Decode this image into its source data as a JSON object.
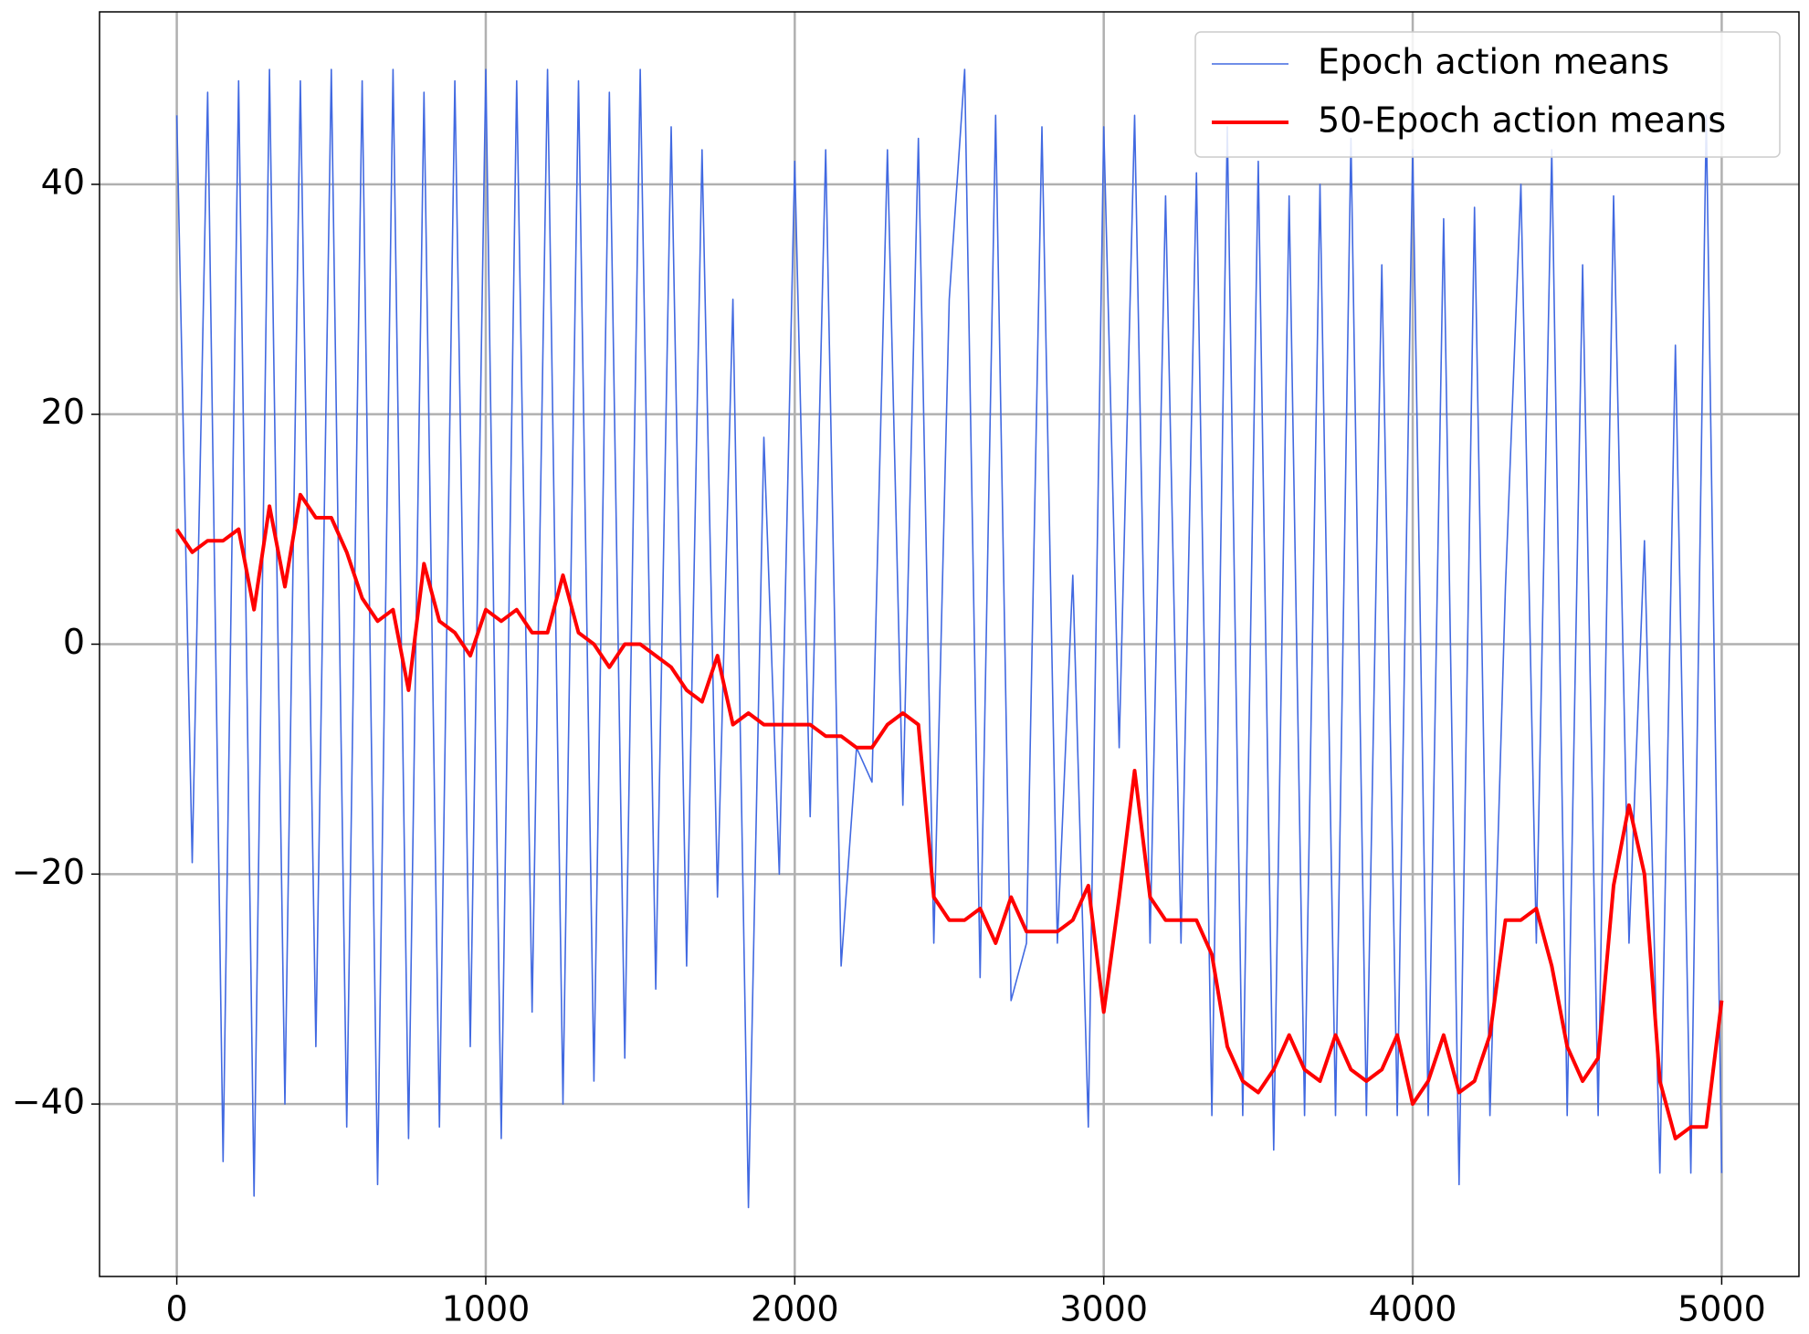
{
  "chart_data": {
    "type": "line",
    "x": [
      0,
      50,
      100,
      150,
      200,
      250,
      300,
      350,
      400,
      450,
      500,
      550,
      600,
      650,
      700,
      750,
      800,
      850,
      900,
      950,
      1000,
      1050,
      1100,
      1150,
      1200,
      1250,
      1300,
      1350,
      1400,
      1450,
      1500,
      1550,
      1600,
      1650,
      1700,
      1750,
      1800,
      1850,
      1900,
      1950,
      2000,
      2050,
      2100,
      2150,
      2200,
      2250,
      2300,
      2350,
      2400,
      2450,
      2500,
      2550,
      2600,
      2650,
      2700,
      2750,
      2800,
      2850,
      2900,
      2950,
      3000,
      3050,
      3100,
      3150,
      3200,
      3250,
      3300,
      3350,
      3400,
      3450,
      3500,
      3550,
      3600,
      3650,
      3700,
      3750,
      3800,
      3850,
      3900,
      3950,
      4000,
      4050,
      4100,
      4150,
      4200,
      4250,
      4300,
      4350,
      4400,
      4450,
      4500,
      4550,
      4600,
      4650,
      4700,
      4750,
      4800,
      4850,
      4900,
      4950,
      5000
    ],
    "series": [
      {
        "name": "Epoch action means",
        "color": "#4169e1",
        "width": 1.6,
        "values": [
          46,
          -19,
          48,
          -45,
          49,
          -48,
          50,
          -40,
          49,
          -35,
          50,
          -42,
          49,
          -47,
          50,
          -43,
          48,
          -42,
          49,
          -35,
          50,
          -43,
          49,
          -32,
          50,
          -40,
          49,
          -38,
          48,
          -36,
          50,
          -30,
          45,
          -28,
          43,
          -22,
          30,
          -49,
          18,
          -20,
          42,
          -15,
          43,
          -28,
          -9,
          -12,
          43,
          -14,
          44,
          -26,
          30,
          50,
          -29,
          46,
          -31,
          -26,
          45,
          -26,
          6,
          -42,
          45,
          -9,
          46,
          -26,
          39,
          -26,
          41,
          -41,
          45,
          -41,
          42,
          -44,
          39,
          -41,
          40,
          -41,
          44,
          -41,
          33,
          -41,
          43,
          -41,
          37,
          -47,
          38,
          -41,
          5,
          40,
          -26,
          43,
          -41,
          33,
          -41,
          39,
          -26,
          9,
          -46,
          26,
          -46,
          46,
          -46
        ]
      },
      {
        "name": "50-Epoch action means",
        "color": "#ff0000",
        "width": 4,
        "values": [
          10,
          8,
          9,
          9,
          10,
          3,
          12,
          5,
          13,
          11,
          11,
          8,
          4,
          2,
          3,
          -4,
          7,
          2,
          1,
          -1,
          3,
          2,
          3,
          1,
          1,
          6,
          1,
          0,
          -2,
          0,
          0,
          -1,
          -2,
          -4,
          -5,
          -1,
          -7,
          -6,
          -7,
          -7,
          -7,
          -7,
          -8,
          -8,
          -9,
          -9,
          -7,
          -6,
          -7,
          -22,
          -24,
          -24,
          -23,
          -26,
          -22,
          -25,
          -25,
          -25,
          -24,
          -21,
          -32,
          -22,
          -11,
          -22,
          -24,
          -24,
          -24,
          -27,
          -35,
          -38,
          -39,
          -37,
          -34,
          -37,
          -38,
          -34,
          -37,
          -38,
          -37,
          -34,
          -40,
          -38,
          -34,
          -39,
          -38,
          -34,
          -24,
          -24,
          -23,
          -28,
          -35,
          -38,
          -36,
          -21,
          -14,
          -20,
          -38,
          -43,
          -42,
          -42,
          -31
        ]
      }
    ],
    "xlim": [
      -250,
      5250
    ],
    "ylim": [
      -55,
      55
    ],
    "xticks": [
      0,
      1000,
      2000,
      3000,
      4000,
      5000
    ],
    "yticks": [
      {
        "value": -40,
        "label": "−40"
      },
      {
        "value": -20,
        "label": "−20"
      },
      0,
      20,
      40
    ],
    "grid": true,
    "legend": "upper right"
  }
}
